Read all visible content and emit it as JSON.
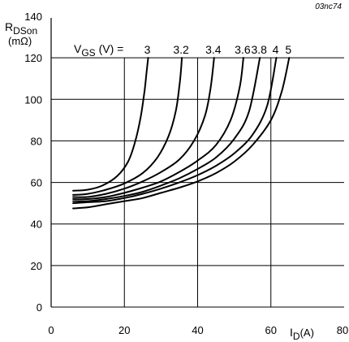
{
  "figure_code": "03nc74",
  "chart_data": {
    "type": "line",
    "title": "",
    "xlabel": {
      "main": "I",
      "sub": "D",
      "unit": "(A)"
    },
    "ylabel": {
      "main": "R",
      "sub": "DSon",
      "unit": "(mΩ)"
    },
    "xlim": [
      0,
      80
    ],
    "ylim": [
      0,
      140
    ],
    "xticks": [
      0,
      20,
      40,
      60,
      80
    ],
    "yticks": [
      0,
      20,
      40,
      60,
      80,
      100,
      120,
      140
    ],
    "grid": true,
    "legend_prefix": {
      "main": "V",
      "sub": "GS",
      "rest": " (V) ="
    },
    "series": [
      {
        "name": "3",
        "x": [
          6,
          10,
          14,
          18,
          21,
          23,
          24.5,
          25.5,
          26,
          26.3,
          26.5
        ],
        "y": [
          56,
          56.5,
          58.5,
          63,
          70,
          80,
          92,
          104,
          112,
          117,
          120
        ]
      },
      {
        "name": "3.2",
        "x": [
          6,
          10,
          15,
          20,
          25,
          29,
          32,
          34,
          35,
          35.5,
          35.7
        ],
        "y": [
          54,
          54.5,
          56.5,
          59.5,
          64.5,
          72,
          82,
          94,
          106,
          115,
          120
        ]
      },
      {
        "name": "3.4",
        "x": [
          6,
          10,
          15,
          20,
          25,
          30,
          35,
          39,
          42,
          43.5,
          44.5
        ],
        "y": [
          53,
          53,
          54.5,
          57,
          60.5,
          65,
          71,
          80,
          92,
          105,
          120
        ]
      },
      {
        "name": "3.6",
        "x": [
          6,
          10,
          15,
          20,
          25,
          30,
          35,
          40,
          45,
          49,
          51.5,
          52.5
        ],
        "y": [
          52,
          52,
          53,
          55,
          57.5,
          60.5,
          65,
          70.5,
          78,
          90,
          106,
          120
        ]
      },
      {
        "name": "3.8",
        "x": [
          6,
          10,
          15,
          20,
          25,
          30,
          35,
          40,
          45,
          50,
          54,
          57
        ],
        "y": [
          51,
          51,
          52,
          53.5,
          55.5,
          58.5,
          62,
          66.5,
          72,
          81,
          94,
          120
        ]
      },
      {
        "name": "4",
        "x": [
          6,
          10,
          15,
          20,
          25,
          30,
          35,
          40,
          45,
          50,
          55,
          59,
          61.5
        ],
        "y": [
          50,
          50.5,
          51,
          52.5,
          54.5,
          57,
          60,
          63.5,
          68,
          74,
          83,
          97,
          120
        ]
      },
      {
        "name": "5",
        "x": [
          6,
          10,
          15,
          20,
          25,
          30,
          35,
          40,
          45,
          50,
          55,
          60,
          63,
          65
        ],
        "y": [
          47.5,
          48,
          49.5,
          51,
          52.5,
          55,
          57.5,
          60.5,
          64.5,
          70,
          78,
          90,
          104,
          120
        ]
      }
    ]
  }
}
